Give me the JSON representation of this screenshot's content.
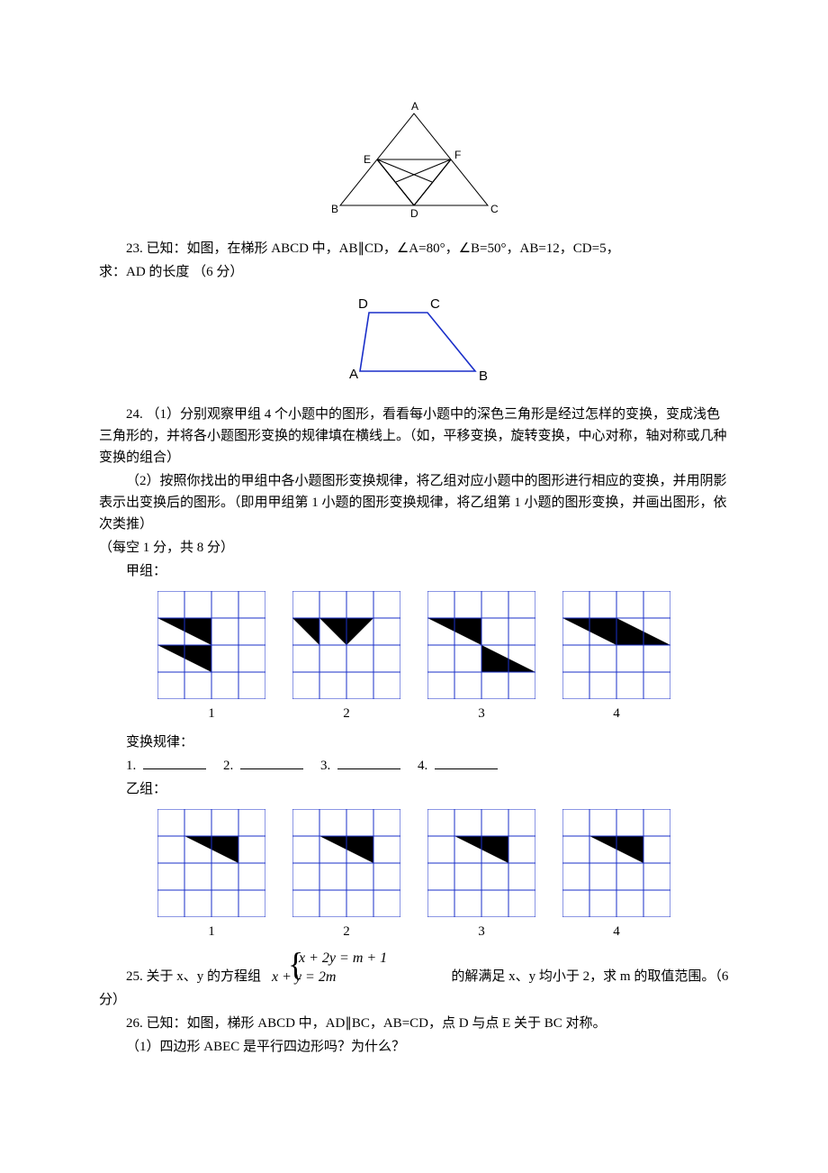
{
  "colors": {
    "text": "#000000",
    "grid": "#1a2fc9",
    "diagram_line": "#1a2fc9",
    "triangle_line": "#000000",
    "fill_black": "#000000",
    "bg": "#ffffff"
  },
  "figure22": {
    "labels": {
      "A": "A",
      "B": "B",
      "C": "C",
      "D": "D",
      "E": "E",
      "F": "F"
    }
  },
  "q23": {
    "line1": "23. 已知：如图，在梯形 ABCD 中，AB∥CD，∠A=80°，∠B=50°，AB=12，CD=5，",
    "line2": "求：AD 的长度 （6 分）",
    "labels": {
      "A": "A",
      "B": "B",
      "C": "C",
      "D": "D"
    }
  },
  "q24": {
    "p1": "24. （1）分别观察甲组 4 个小题中的图形，看看每小题中的深色三角形是经过怎样的变换，变成浅色三角形的，并将各小题图形变换的规律填在横线上。（如，平移变换，旋转变换，中心对称，轴对称或几种变换的组合）",
    "p2": "（2）按照你找出的甲组中各小题图形变换规律，将乙组对应小题中的图形进行相应的变换，并用阴影表示出变换后的图形。（即用甲组第 1 小题的图形变换规律，将乙组第 1 小题的图形变换，并画出图形，依次类推）",
    "p3": "（每空 1 分，共 8 分）",
    "jia_label": "甲组：",
    "rule_label": "变换规律：",
    "rules": [
      "1. ",
      "2. ",
      "3. ",
      "4. "
    ],
    "yi_label": "乙组：",
    "captions": [
      "1",
      "2",
      "3",
      "4"
    ]
  },
  "grids_jia": [
    {
      "cols": 4,
      "rows": 4,
      "triangles": [
        {
          "pts": [
            [
              0,
              2
            ],
            [
              2,
              2
            ],
            [
              2,
              3
            ]
          ],
          "fill": "#000000"
        },
        {
          "pts": [
            [
              0,
              1
            ],
            [
              2,
              1
            ],
            [
              2,
              2
            ]
          ],
          "fill": "#000000"
        }
      ]
    },
    {
      "cols": 4,
      "rows": 4,
      "triangles": [
        {
          "pts": [
            [
              1,
              1
            ],
            [
              3,
              1
            ],
            [
              2,
              2
            ]
          ],
          "fill": "#000000"
        },
        {
          "pts": [
            [
              0,
              1
            ],
            [
              1,
              1
            ],
            [
              1,
              2
            ]
          ],
          "fill": "#000000"
        }
      ]
    },
    {
      "cols": 4,
      "rows": 4,
      "triangles": [
        {
          "pts": [
            [
              0,
              1
            ],
            [
              2,
              1
            ],
            [
              2,
              2
            ]
          ],
          "fill": "#000000"
        },
        {
          "pts": [
            [
              2,
              2
            ],
            [
              2,
              3
            ],
            [
              4,
              3
            ]
          ],
          "fill": "#000000"
        }
      ]
    },
    {
      "cols": 4,
      "rows": 4,
      "triangles": [
        {
          "pts": [
            [
              0,
              1
            ],
            [
              2,
              1
            ],
            [
              2,
              2
            ]
          ],
          "fill": "#000000"
        },
        {
          "pts": [
            [
              2,
              1
            ],
            [
              4,
              2
            ],
            [
              2,
              2
            ]
          ],
          "fill": "#000000"
        }
      ]
    }
  ],
  "grids_yi": [
    {
      "cols": 4,
      "rows": 4,
      "triangles": [
        {
          "pts": [
            [
              1,
              1
            ],
            [
              3,
              1
            ],
            [
              3,
              2
            ]
          ],
          "fill": "#000000"
        }
      ]
    },
    {
      "cols": 4,
      "rows": 4,
      "triangles": [
        {
          "pts": [
            [
              1,
              1
            ],
            [
              3,
              1
            ],
            [
              3,
              2
            ]
          ],
          "fill": "#000000"
        }
      ]
    },
    {
      "cols": 4,
      "rows": 4,
      "triangles": [
        {
          "pts": [
            [
              1,
              1
            ],
            [
              3,
              1
            ],
            [
              3,
              2
            ]
          ],
          "fill": "#000000"
        }
      ]
    },
    {
      "cols": 4,
      "rows": 4,
      "triangles": [
        {
          "pts": [
            [
              1,
              1
            ],
            [
              3,
              1
            ],
            [
              3,
              2
            ]
          ],
          "fill": "#000000"
        }
      ]
    }
  ],
  "q25": {
    "prefix": "25. 关于 x、y 的方程组",
    "eq1": "x + 2y = m + 1",
    "eq2": "x + y = 2m",
    "suffix": "的解满足 x、y 均小于 2，求 m 的取值范围。（6",
    "line2": "分）"
  },
  "q26": {
    "line1": "26. 已知：如图，梯形 ABCD 中，AD∥BC，AB=CD，点 D 与点 E 关于 BC 对称。",
    "line2": "（1）四边形 ABEC 是平行四边形吗？为什么？"
  }
}
